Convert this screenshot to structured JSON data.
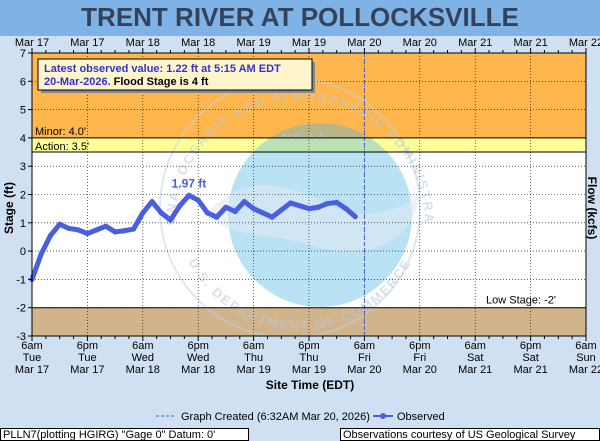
{
  "title": "TRENT RIVER AT POLLOCKSVILLE",
  "top_ticks": [
    "Mar 17",
    "Mar 17",
    "Mar 18",
    "Mar 18",
    "Mar 19",
    "Mar 19",
    "Mar 20",
    "Mar 20",
    "Mar 21",
    "Mar 21",
    "Mar 22"
  ],
  "bottom_ticks": [
    [
      "6am",
      "Tue",
      "Mar 17"
    ],
    [
      "6pm",
      "Tue",
      "Mar 17"
    ],
    [
      "6am",
      "Wed",
      "Mar 18"
    ],
    [
      "6pm",
      "Wed",
      "Mar 18"
    ],
    [
      "6am",
      "Thu",
      "Mar 19"
    ],
    [
      "6pm",
      "Thu",
      "Mar 19"
    ],
    [
      "6am",
      "Fri",
      "Mar 20"
    ],
    [
      "6pm",
      "Fri",
      "Mar 20"
    ],
    [
      "6am",
      "Sat",
      "Mar 21"
    ],
    [
      "6pm",
      "Sat",
      "Mar 21"
    ],
    [
      "6am",
      "Sun",
      "Mar 22"
    ]
  ],
  "latest": {
    "line1": "Latest observed value: 1.22 ft at 5:15 AM EDT",
    "line2a": "20-Mar-2026.",
    "line2b": "Flood Stage is 4 ft"
  },
  "thresholds": {
    "minor_label": "Minor: 4.0'",
    "action_label": "Action: 3.5'",
    "low_label": "Low Stage: -2'"
  },
  "peak_label": "1.97 ft",
  "legend": {
    "created": "Graph Created (6:32AM Mar 20, 2026)",
    "observed": "Observed"
  },
  "footer": {
    "left": "PLLN7(plotting HGIRG) \"Gage 0\" Datum: 0'",
    "right": "Observations courtesy of US Geological Survey"
  },
  "watermark": {
    "logo": "NOAA",
    "top_text": "NATIONAL OCEANIC AND ATMOSPHERIC ADMINISTRATION",
    "bottom_text": "U.S. DEPARTMENT OF COMMERCE"
  },
  "colors": {
    "major_minor_band": "#ffb74d",
    "action_band": "#ffff99",
    "low_band": "#d2b48c",
    "observed": "#4a5fe0",
    "background": "#cfe0f2"
  },
  "chart_data": {
    "type": "line",
    "title": "TRENT RIVER AT POLLOCKSVILLE",
    "xlabel": "Site Time (EDT)",
    "ylabel": "Stage (ft)",
    "y2label": "Flow (kcfs)",
    "ylim": [
      -3,
      7
    ],
    "y_ticks": [
      -3,
      -2,
      -1,
      0,
      1,
      2,
      3,
      4,
      5,
      6,
      7
    ],
    "x_range_hours_from_mar17_6am": [
      0,
      120
    ],
    "graph_created_hour": 72,
    "grid": true,
    "thresholds": {
      "minor": 4.0,
      "action": 3.5,
      "low": -2.0
    },
    "series": [
      {
        "name": "Observed",
        "hours_since_mar17_6am": [
          0,
          2,
          4,
          6,
          8,
          10,
          12,
          14,
          16,
          18,
          20,
          22,
          24,
          26,
          28,
          30,
          32,
          34,
          36,
          38,
          40,
          42,
          44,
          46,
          48,
          50,
          52,
          54,
          56,
          58,
          60,
          62,
          64,
          66,
          68,
          70
        ],
        "stage_ft": [
          -1.0,
          -0.1,
          0.55,
          0.95,
          0.8,
          0.75,
          0.62,
          0.75,
          0.88,
          0.68,
          0.72,
          0.78,
          1.35,
          1.75,
          1.35,
          1.1,
          1.6,
          1.97,
          1.8,
          1.35,
          1.2,
          1.55,
          1.4,
          1.75,
          1.5,
          1.35,
          1.2,
          1.45,
          1.7,
          1.6,
          1.5,
          1.55,
          1.68,
          1.72,
          1.5,
          1.22
        ]
      }
    ]
  }
}
